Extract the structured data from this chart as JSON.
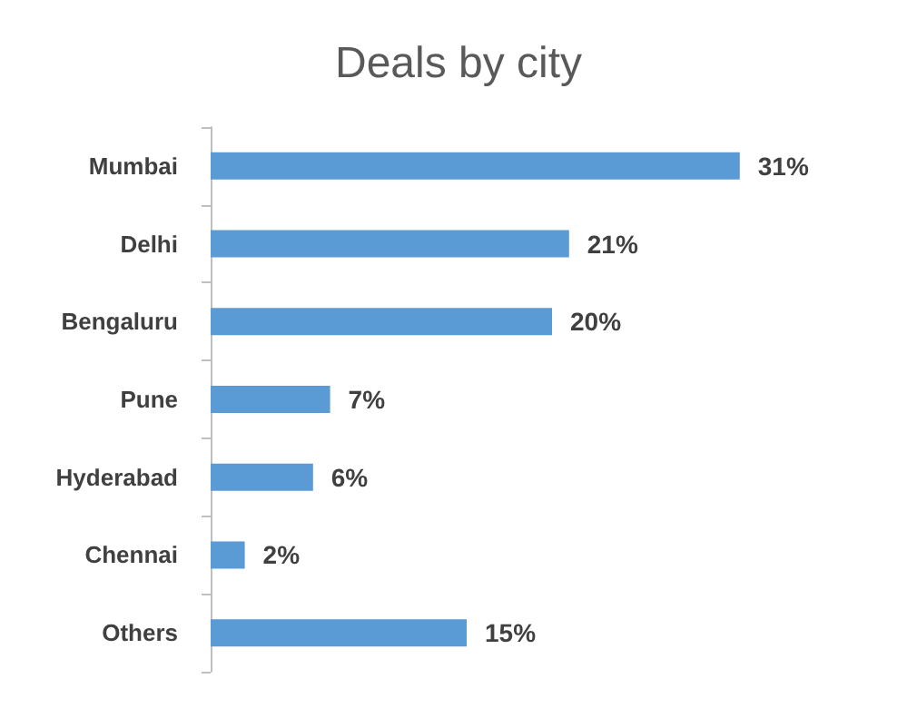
{
  "chart_data": {
    "type": "bar",
    "title": "Deals by city",
    "orientation": "horizontal",
    "categories": [
      "Mumbai",
      "Delhi",
      "Bengaluru",
      "Pune",
      "Hyderabad",
      "Chennai",
      "Others"
    ],
    "values": [
      31,
      21,
      20,
      7,
      6,
      2,
      15
    ],
    "value_labels": [
      "31%",
      "21%",
      "20%",
      "7%",
      "6%",
      "2%",
      "15%"
    ],
    "color": "#5b9bd5"
  }
}
